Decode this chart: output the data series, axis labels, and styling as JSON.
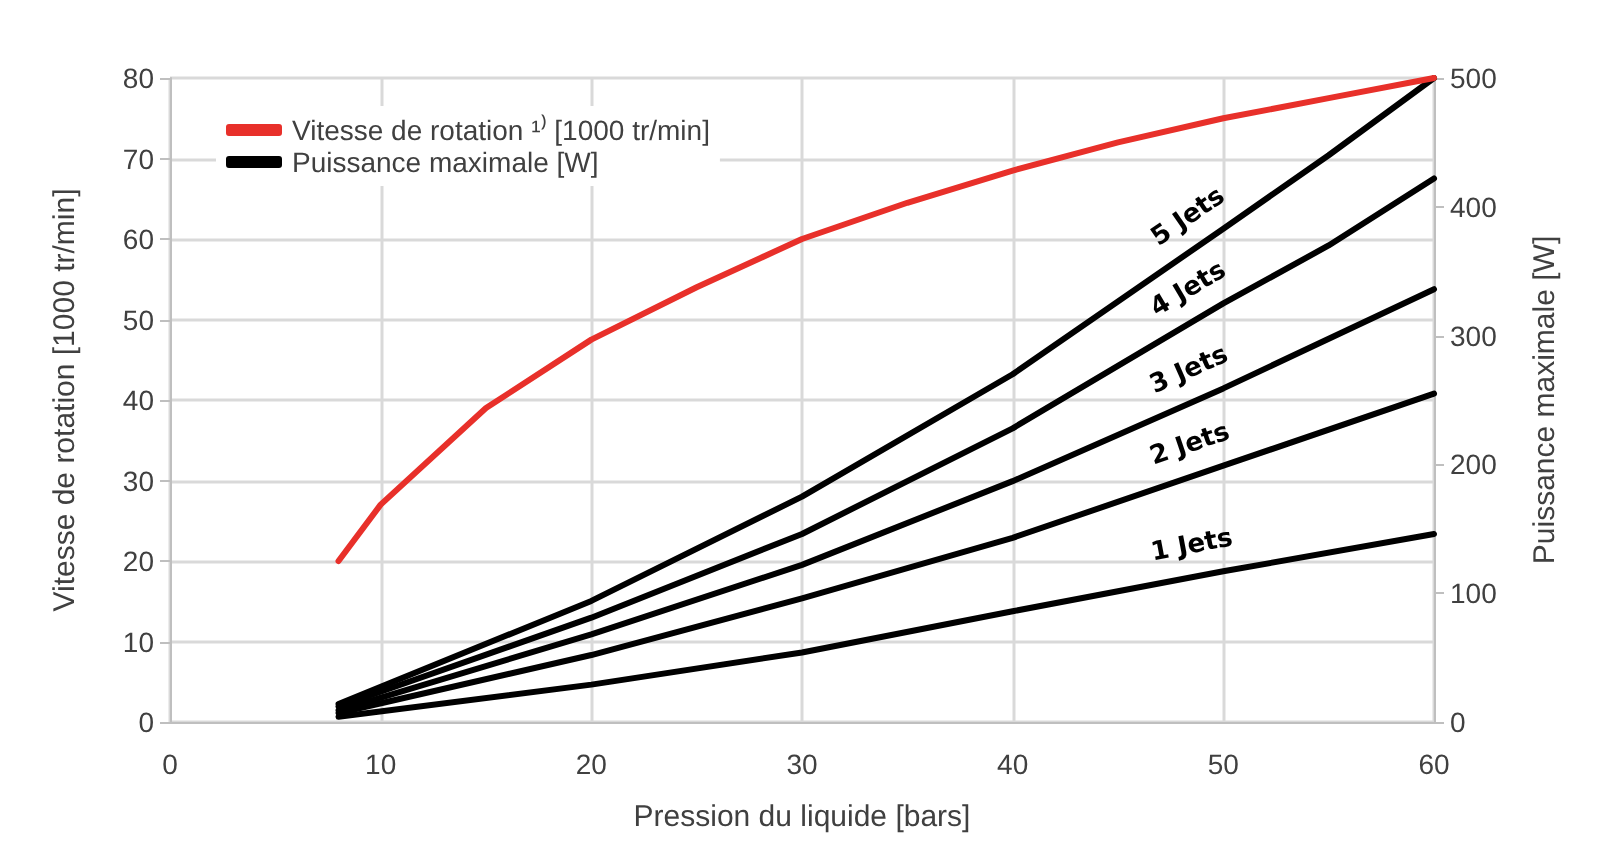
{
  "chart_data": {
    "type": "line",
    "xlabel": "Pression du liquide [bars]",
    "ylabel": "Vitesse de rotation [1000 tr/min]",
    "y2label": "Puissance maximale [W]",
    "xlim": [
      0,
      60
    ],
    "xticks": [
      0,
      10,
      20,
      30,
      40,
      50,
      60
    ],
    "ylim": [
      0,
      80
    ],
    "yticks": [
      0,
      10,
      20,
      30,
      40,
      50,
      60,
      70,
      80
    ],
    "y2lim": [
      0,
      500
    ],
    "y2ticks": [
      0,
      100,
      200,
      300,
      400,
      500
    ],
    "grid": true,
    "legend": "top left",
    "marker": "none",
    "line_style": "solid",
    "annotations": [
      "Puissance maximale [W]"
    ],
    "series": [
      {
        "name": "Vitesse de rotation ¹⁾ [1000 tr/min]",
        "color": "#e8302a",
        "x": [
          8,
          10,
          15,
          20,
          25,
          30,
          35,
          40,
          45,
          50,
          55,
          60
        ],
        "values": [
          20,
          27,
          39,
          47.5,
          54,
          60,
          64.5,
          68.5,
          72,
          75,
          77.5,
          80
        ]
      },
      {
        "name": "1 Jets",
        "color": "#000000",
        "axis": "y2",
        "x": [
          8,
          20,
          30,
          40,
          50,
          60
        ],
        "values": [
          4,
          29,
          54,
          86,
          117,
          146
        ]
      },
      {
        "name": "2 Jets",
        "color": "#000000",
        "axis": "y2",
        "x": [
          8,
          20,
          30,
          40,
          50,
          60
        ],
        "values": [
          7,
          52,
          96,
          143,
          199,
          255
        ]
      },
      {
        "name": "3 Jets",
        "color": "#000000",
        "axis": "y2",
        "x": [
          8,
          20,
          30,
          40,
          50,
          60
        ],
        "values": [
          9,
          68,
          122,
          187,
          259,
          336
        ]
      },
      {
        "name": "4 Jets",
        "color": "#000000",
        "axis": "y2",
        "x": [
          8,
          20,
          30,
          40,
          50,
          55,
          60
        ],
        "values": [
          12,
          81,
          146,
          228,
          325,
          370,
          422
        ]
      },
      {
        "name": "5 Jets",
        "color": "#000000",
        "axis": "y2",
        "x": [
          8,
          20,
          30,
          40,
          50,
          55,
          60
        ],
        "values": [
          14,
          94,
          175,
          270,
          383,
          440,
          500
        ]
      }
    ]
  }
}
